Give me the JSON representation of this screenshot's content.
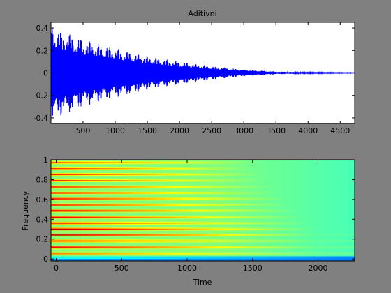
{
  "window": {
    "background": "#808080"
  },
  "chart_data": [
    {
      "type": "line",
      "title": "Aditivni",
      "xlabel": "",
      "ylabel": "",
      "xlim": [
        1,
        4725
      ],
      "ylim": [
        -0.45,
        0.45
      ],
      "xticks": [
        500,
        1000,
        1500,
        2000,
        2500,
        3000,
        3500,
        4000,
        4500
      ],
      "yticks": [
        -0.4,
        -0.2,
        0,
        0.2,
        0.4
      ],
      "xtick_labels": [
        "500",
        "1000",
        "1500",
        "2000",
        "2500",
        "3000",
        "3500",
        "4000",
        "4500"
      ],
      "ytick_labels": [
        "-0.4",
        "-0.2",
        "0",
        "0.2",
        "0.4"
      ],
      "grid": false,
      "series": [
        {
          "color": "#0000ff",
          "envelope_x": [
            0,
            500,
            1000,
            1500,
            2000,
            2500,
            3000,
            3500,
            4000,
            4725
          ],
          "envelope_amplitude": [
            0.42,
            0.3,
            0.22,
            0.15,
            0.1,
            0.06,
            0.03,
            0.012,
            0.006,
            0.003
          ]
        }
      ]
    },
    {
      "type": "heatmap",
      "title": "",
      "xlabel": "Time",
      "ylabel": "Frequency",
      "xlim": [
        -40,
        2280
      ],
      "ylim": [
        -0.02,
        1.0
      ],
      "xticks": [
        0,
        500,
        1000,
        1500,
        2000
      ],
      "yticks": [
        0,
        0.2,
        0.4,
        0.6,
        0.8,
        1
      ],
      "xtick_labels": [
        "0",
        "500",
        "1000",
        "1500",
        "2000"
      ],
      "ytick_labels": [
        "0",
        "0.2",
        "0.4",
        "0.6",
        "0.8",
        "1"
      ],
      "colormap": "jet",
      "grid": false,
      "harmonic_frequencies": [
        0.06,
        0.12,
        0.185,
        0.245,
        0.305,
        0.365,
        0.425,
        0.49,
        0.55,
        0.61,
        0.67,
        0.73,
        0.795,
        0.855,
        0.915,
        0.975
      ],
      "harmonic_start_level": [
        0.8,
        0.95,
        0.9,
        0.97,
        0.95,
        0.92,
        0.9,
        0.92,
        0.88,
        0.9,
        0.85,
        0.87,
        0.84,
        0.86,
        0.83,
        0.85
      ],
      "background_level": 0.5,
      "dc_band_level": 0.25
    }
  ]
}
